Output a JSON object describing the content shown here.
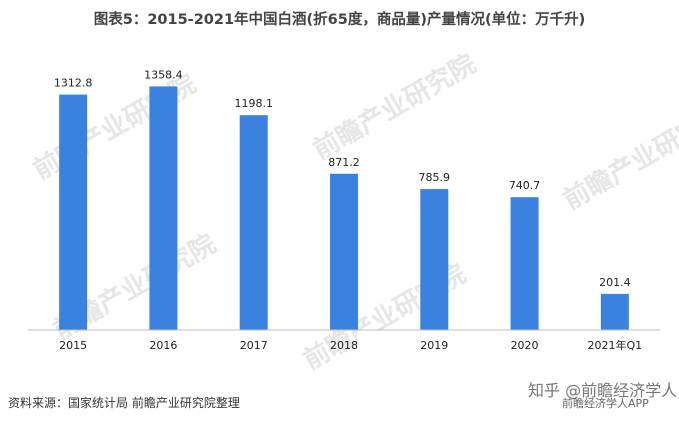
{
  "title": "图表5：2015-2021年中国白酒(折65度，商品量)产量情况(单位：万千升)",
  "source": "资料来源：国家统计局 前瞻产业研究院整理",
  "watermark": "前瞻产业研究院",
  "brand_primary": "知乎 @前瞻经济学人",
  "brand_secondary": "前瞻经济学人APP",
  "colors": {
    "bar": "#3b82e0",
    "axis": "#bfbfbf",
    "text": "#222222"
  },
  "chart_data": {
    "type": "bar",
    "categories": [
      "2015",
      "2016",
      "2017",
      "2018",
      "2019",
      "2020",
      "2021年Q1"
    ],
    "values": [
      1312.8,
      1358.4,
      1198.1,
      871.2,
      785.9,
      740.7,
      201.4
    ],
    "title": "图表5：2015-2021年中国白酒(折65度，商品量)产量情况(单位：万千升)",
    "xlabel": "",
    "ylabel": "",
    "ylim": [
      0,
      1450
    ],
    "grid": false,
    "legend": "none"
  }
}
